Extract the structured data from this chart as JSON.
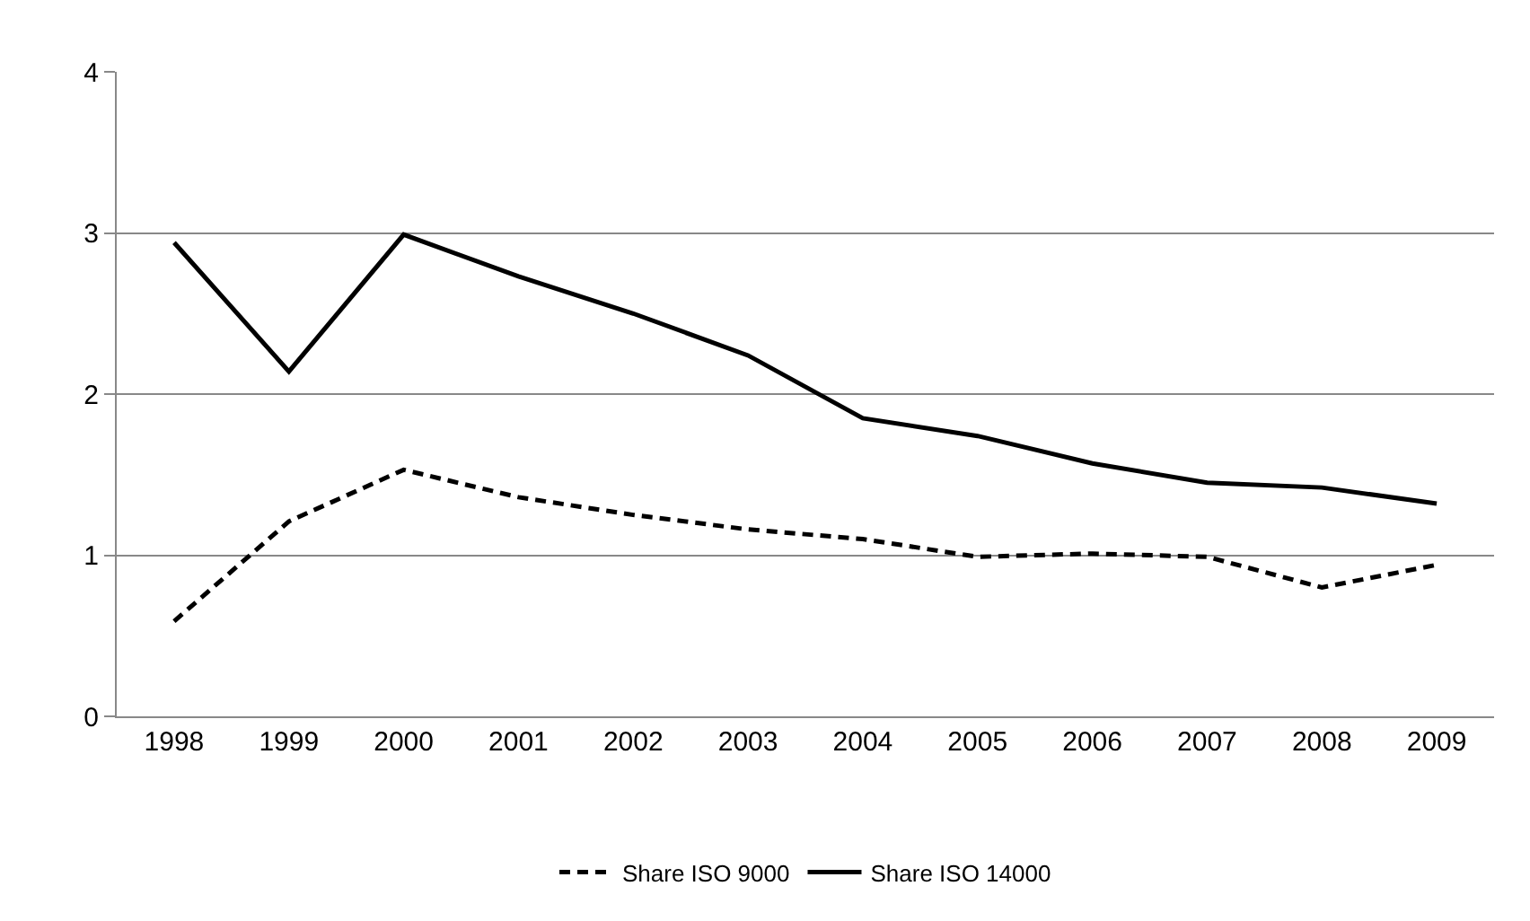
{
  "chart_data": {
    "type": "line",
    "categories": [
      "1998",
      "1999",
      "2000",
      "2001",
      "2002",
      "2003",
      "2004",
      "2005",
      "2006",
      "2007",
      "2008",
      "2009"
    ],
    "series": [
      {
        "name": "Share ISO 9000",
        "color": "#000000",
        "line_style": "dashed",
        "values": [
          0.59,
          1.21,
          1.53,
          1.36,
          1.25,
          1.16,
          1.1,
          0.99,
          1.01,
          0.99,
          0.8,
          0.94
        ]
      },
      {
        "name": "Share ISO 14000",
        "color": "#000000",
        "line_style": "solid",
        "values": [
          2.94,
          2.14,
          2.99,
          2.73,
          2.5,
          2.24,
          1.85,
          1.74,
          1.57,
          1.45,
          1.42,
          1.32
        ]
      }
    ],
    "ylim": [
      0,
      4
    ],
    "yticks": [
      0,
      1,
      2,
      3,
      4
    ],
    "grid": "y",
    "legend": "bottom",
    "marker": "none"
  }
}
